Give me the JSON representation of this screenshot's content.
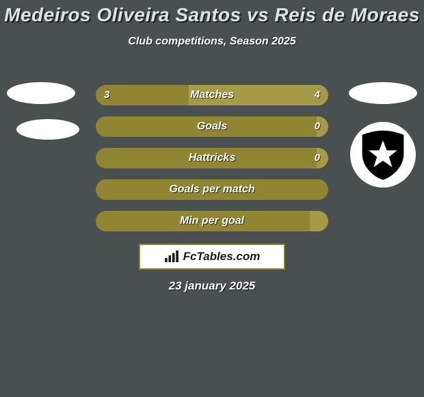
{
  "background_color": "#4a4f50",
  "title": {
    "text": "Medeiros Oliveira Santos vs Reis de Moraes",
    "color": "#dfe3e4",
    "fontsize": 28
  },
  "subtitle": {
    "text": "Club competitions, Season 2025",
    "color": "#ffffff",
    "fontsize": 16
  },
  "bars": {
    "left_color": "#8f8533",
    "right_color": "#a59a47",
    "label_fontsize": 16,
    "value_fontsize": 15,
    "rows": [
      {
        "label": "Matches",
        "left": "3",
        "right": "4",
        "left_pct": 40,
        "right_pct": 60,
        "show_values": true
      },
      {
        "label": "Goals",
        "left": "",
        "right": "0",
        "left_pct": 95,
        "right_pct": 5,
        "show_values": true
      },
      {
        "label": "Hattricks",
        "left": "",
        "right": "0",
        "left_pct": 95,
        "right_pct": 5,
        "show_values": true
      },
      {
        "label": "Goals per match",
        "left": "",
        "right": "",
        "left_pct": 100,
        "right_pct": 0,
        "show_values": false
      },
      {
        "label": "Min per goal",
        "left": "",
        "right": "",
        "left_pct": 92,
        "right_pct": 8,
        "show_values": false
      }
    ]
  },
  "brand": {
    "text": "FcTables.com",
    "box_border_color": "#908327",
    "box_bg": "#ffffff",
    "text_color": "#1a1a1a",
    "icon_color": "#1a1a1a"
  },
  "date": {
    "text": "23 january 2025",
    "fontsize": 17
  },
  "club_badge": {
    "shield_color": "#000000",
    "star_color": "#ffffff"
  }
}
